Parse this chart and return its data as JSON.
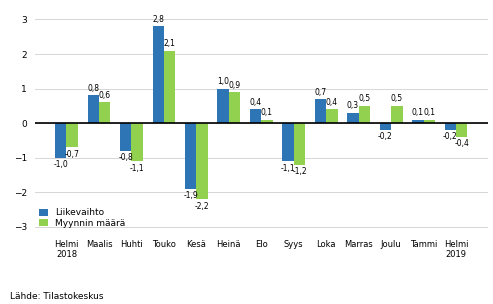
{
  "categories": [
    "Helmi\n2018",
    "Maalis",
    "Huhti",
    "Touko",
    "Kesä",
    "Heinä",
    "Elo",
    "Syys",
    "Loka",
    "Marras",
    "Joulu",
    "Tammi",
    "Helmi\n2019"
  ],
  "liikevaihto": [
    -1.0,
    0.8,
    -0.8,
    2.8,
    -1.9,
    1.0,
    0.4,
    -1.1,
    0.7,
    0.3,
    -0.2,
    0.1,
    -0.2
  ],
  "myynti": [
    -0.7,
    0.6,
    -1.1,
    2.1,
    -2.2,
    0.9,
    0.1,
    -1.2,
    0.4,
    0.5,
    0.5,
    0.1,
    -0.4
  ],
  "color_liikevaihto": "#2e75b6",
  "color_myynti": "#92d050",
  "ylim": [
    -3.3,
    3.3
  ],
  "yticks": [
    -3,
    -2,
    -1,
    0,
    1,
    2,
    3
  ],
  "legend_liikevaihto": "Liikevaihto",
  "legend_myynti": "Myynnin määrä",
  "source_text": "Lähde: Tilastokeskus",
  "bar_width": 0.35
}
